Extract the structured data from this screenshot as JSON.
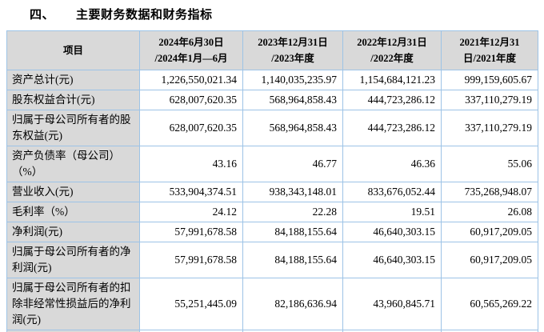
{
  "colors": {
    "table_border": "#9dc3e6",
    "shaded_cell_bg": "#d9d9d9",
    "text": "#000000",
    "page_bg": "#ffffff"
  },
  "title": {
    "section_number": "四、",
    "text": "主要财务数据和财务指标"
  },
  "table": {
    "columns": [
      "项目",
      "2024年6月30日\n/2024年1月—6月",
      "2023年12月31日\n/2023年度",
      "2022年12月31日\n/2022年度",
      "2021年12月31\n日/2021年度"
    ],
    "rows": [
      {
        "label": "资产总计(元)",
        "values": [
          "1,226,550,021.34",
          "1,140,035,235.97",
          "1,154,684,121.23",
          "999,159,605.67"
        ]
      },
      {
        "label": "股东权益合计(元)",
        "values": [
          "628,007,620.35",
          "568,964,858.43",
          "444,723,286.12",
          "337,110,279.19"
        ]
      },
      {
        "label": "归属于母公司所有者的股东权益(元)",
        "values": [
          "628,007,620.35",
          "568,964,858.43",
          "444,723,286.12",
          "337,110,279.19"
        ]
      },
      {
        "label": "资产负债率（母公司）（%）",
        "values": [
          "43.16",
          "46.77",
          "46.36",
          "55.06"
        ]
      },
      {
        "label": "营业收入(元)",
        "values": [
          "533,904,374.51",
          "938,343,148.01",
          "833,676,052.44",
          "735,268,948.07"
        ]
      },
      {
        "label": "毛利率（%）",
        "values": [
          "24.12",
          "22.28",
          "19.51",
          "26.08"
        ]
      },
      {
        "label": "净利润(元)",
        "values": [
          "57,991,678.58",
          "84,188,155.64",
          "46,640,303.15",
          "60,917,209.05"
        ]
      },
      {
        "label": "归属于母公司所有者的净利润(元)",
        "values": [
          "57,991,678.58",
          "84,188,155.64",
          "46,640,303.15",
          "60,917,209.05"
        ]
      },
      {
        "label": "归属于母公司所有者的扣除非经常性损益后的净利润(元)",
        "values": [
          "55,251,445.09",
          "82,186,636.94",
          "43,960,845.71",
          "60,565,269.22"
        ]
      },
      {
        "label": "",
        "values": [
          "",
          "",
          "",
          ""
        ]
      }
    ]
  }
}
